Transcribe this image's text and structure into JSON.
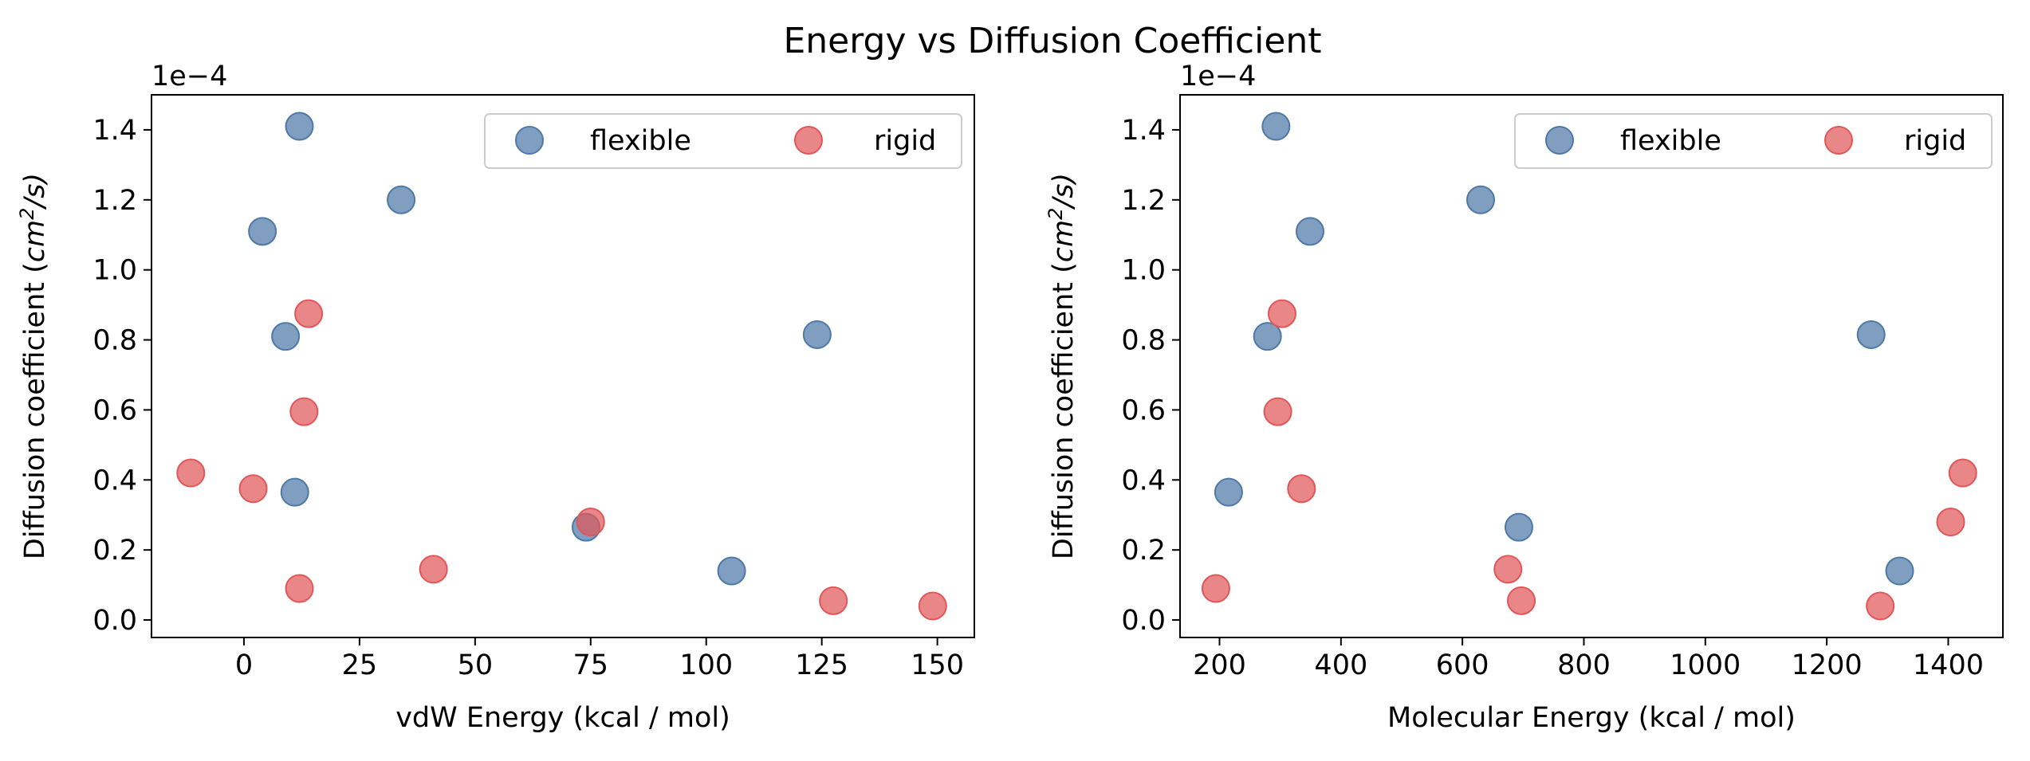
{
  "figure": {
    "title": "Energy vs Diffusion Coefficient"
  },
  "colors": {
    "flexible": "#4e79a7",
    "rigid": "#e15759"
  },
  "chart_data": [
    {
      "type": "scatter",
      "title": "",
      "xlabel": "vdW Energy (kcal / mol)",
      "ylabel": "Diffusion coefficient (cm²/s)",
      "ylabel_base": "Diffusion coefficient (",
      "ylabel_unit": "cm",
      "ylabel_exp": "2",
      "ylabel_tail": "/s)",
      "y_offset_label": "1e−4",
      "xlim": [
        -20,
        158
      ],
      "ylim": [
        -0.05,
        1.5
      ],
      "xticks": [
        0,
        25,
        50,
        75,
        100,
        125,
        150
      ],
      "yticks": [
        0.0,
        0.2,
        0.4,
        0.6,
        0.8,
        1.0,
        1.2,
        1.4
      ],
      "ytick_labels": [
        "0.0",
        "0.2",
        "0.4",
        "0.6",
        "0.8",
        "1.0",
        "1.2",
        "1.4"
      ],
      "grid": false,
      "legend": {
        "placement": "top-right",
        "columns": 2
      },
      "series": [
        {
          "name": "flexible",
          "color": "#4e79a7",
          "points": [
            {
              "x": 12,
              "y": 1.41
            },
            {
              "x": 34,
              "y": 1.2
            },
            {
              "x": 4,
              "y": 1.11
            },
            {
              "x": 9,
              "y": 0.81
            },
            {
              "x": 124,
              "y": 0.815
            },
            {
              "x": 11,
              "y": 0.365
            },
            {
              "x": 74,
              "y": 0.265
            },
            {
              "x": 105.5,
              "y": 0.14
            }
          ]
        },
        {
          "name": "rigid",
          "color": "#e15759",
          "points": [
            {
              "x": 14,
              "y": 0.875
            },
            {
              "x": 13,
              "y": 0.595
            },
            {
              "x": -11.5,
              "y": 0.42
            },
            {
              "x": 2,
              "y": 0.375
            },
            {
              "x": 75,
              "y": 0.28
            },
            {
              "x": 41,
              "y": 0.145
            },
            {
              "x": 12,
              "y": 0.09
            },
            {
              "x": 127.5,
              "y": 0.055
            },
            {
              "x": 149,
              "y": 0.04
            }
          ]
        }
      ]
    },
    {
      "type": "scatter",
      "title": "",
      "xlabel": "Molecular Energy (kcal / mol)",
      "ylabel": "Diffusion coefficient (cm²/s)",
      "ylabel_base": "Diffusion coefficient (",
      "ylabel_unit": "cm",
      "ylabel_exp": "2",
      "ylabel_tail": "/s)",
      "y_offset_label": "1e−4",
      "xlim": [
        135,
        1490
      ],
      "ylim": [
        -0.05,
        1.5
      ],
      "xticks": [
        200,
        400,
        600,
        800,
        1000,
        1200,
        1400
      ],
      "yticks": [
        0.0,
        0.2,
        0.4,
        0.6,
        0.8,
        1.0,
        1.2,
        1.4
      ],
      "ytick_labels": [
        "0.0",
        "0.2",
        "0.4",
        "0.6",
        "0.8",
        "1.0",
        "1.2",
        "1.4"
      ],
      "grid": false,
      "legend": {
        "placement": "top-right",
        "columns": 2
      },
      "series": [
        {
          "name": "flexible",
          "color": "#4e79a7",
          "points": [
            {
              "x": 293,
              "y": 1.41
            },
            {
              "x": 630,
              "y": 1.2
            },
            {
              "x": 349,
              "y": 1.11
            },
            {
              "x": 279,
              "y": 0.81
            },
            {
              "x": 1273,
              "y": 0.815
            },
            {
              "x": 215,
              "y": 0.365
            },
            {
              "x": 693,
              "y": 0.265
            },
            {
              "x": 1320,
              "y": 0.14
            }
          ]
        },
        {
          "name": "rigid",
          "color": "#e15759",
          "points": [
            {
              "x": 303,
              "y": 0.875
            },
            {
              "x": 296,
              "y": 0.595
            },
            {
              "x": 1424,
              "y": 0.42
            },
            {
              "x": 335,
              "y": 0.375
            },
            {
              "x": 1404,
              "y": 0.28
            },
            {
              "x": 675,
              "y": 0.145
            },
            {
              "x": 194,
              "y": 0.09
            },
            {
              "x": 697,
              "y": 0.055
            },
            {
              "x": 1288,
              "y": 0.04
            }
          ]
        }
      ]
    }
  ]
}
